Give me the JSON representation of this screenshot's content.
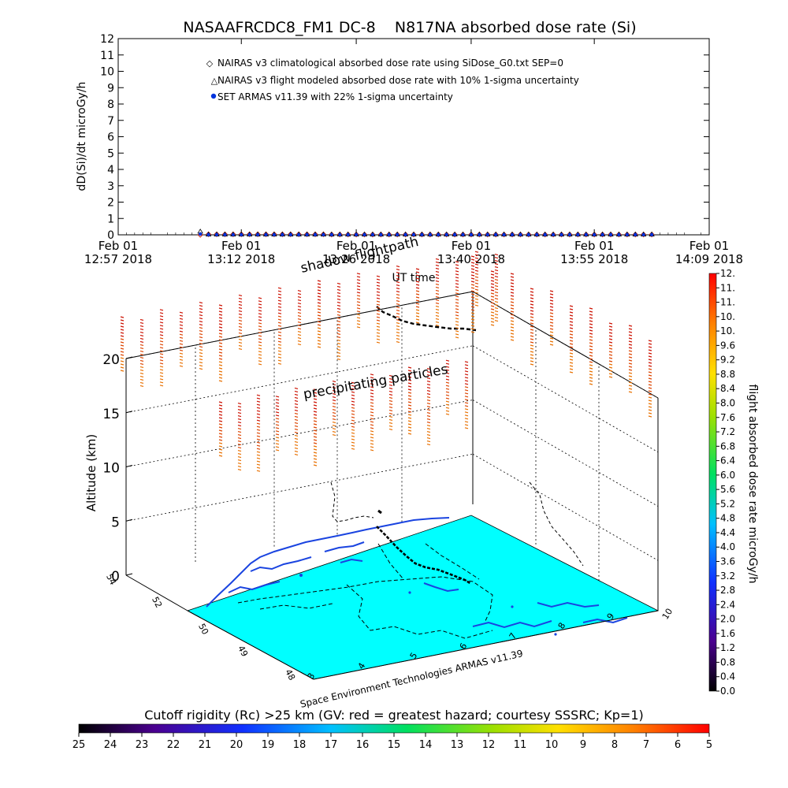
{
  "chart_data": [
    {
      "type": "scatter",
      "title": "NASAAFRCDC8_FM1 DC-8    N817NA absorbed dose rate (Si)",
      "xlabel": "UT time",
      "ylabel": "dD(Si)/dt microGy/h",
      "ylim": [
        0,
        12
      ],
      "y_ticks": [
        "0",
        "1",
        "2",
        "3",
        "4",
        "5",
        "6",
        "7",
        "8",
        "9",
        "10",
        "11",
        "12"
      ],
      "x_ticks": [
        {
          "line1": "Feb 01",
          "line2": "12:57 2018"
        },
        {
          "line1": "Feb 01",
          "line2": "13:12 2018"
        },
        {
          "line1": "Feb 01",
          "line2": "13:26 2018"
        },
        {
          "line1": "Feb 01",
          "line2": "13:40 2018"
        },
        {
          "line1": "Feb 01",
          "line2": "13:55 2018"
        },
        {
          "line1": "Feb 01",
          "line2": "14:09 2018"
        }
      ],
      "x_tick_minutes": [
        0,
        15,
        29,
        43,
        58,
        72
      ],
      "xlim_minutes": [
        0,
        72
      ],
      "legend_position": "top-left",
      "series": [
        {
          "name": "NAIRAS v3 climatological absorbed dose rate using SiDose_G0.txt SEP=0",
          "marker": "diamond",
          "color": "#cc2200",
          "x_minutes": [
            10,
            11,
            12,
            13,
            14,
            15,
            16,
            17,
            18,
            19,
            20,
            21,
            22,
            23,
            24,
            25,
            26,
            27,
            28,
            29,
            30,
            31,
            32,
            33,
            34,
            35,
            36,
            37,
            38,
            39,
            40,
            41,
            42,
            43,
            44,
            45,
            46,
            47,
            48,
            49,
            50,
            51,
            52,
            53,
            54,
            55,
            56,
            57,
            58,
            59,
            60,
            61,
            62,
            63,
            64,
            65
          ],
          "values": [
            0,
            0.03,
            0.03,
            0.03,
            0.03,
            0.03,
            0.03,
            0.03,
            0.03,
            0.03,
            0.03,
            0.03,
            0.03,
            0.03,
            0.03,
            0.03,
            0.02,
            0.02,
            0.02,
            0.02,
            0.02,
            0.02,
            0.02,
            0.02,
            0.02,
            0.02,
            0.02,
            0.02,
            0.02,
            0.02,
            0.02,
            0.02,
            0.02,
            0.02,
            0.02,
            0.02,
            0.02,
            0.02,
            0.02,
            0.02,
            0.02,
            0.02,
            0.02,
            0.02,
            0.02,
            0.02,
            0.02,
            0.02,
            0.02,
            0.02,
            0.02,
            0.02,
            0.02,
            0.02,
            0.02,
            0.02
          ]
        },
        {
          "name": "NAIRAS v3 flight modeled absorbed dose rate with 10% 1-sigma uncertainty",
          "marker": "triangle",
          "color": "#000000",
          "x_minutes": [
            10,
            11,
            12,
            13,
            14,
            15,
            16,
            17,
            18,
            19,
            20,
            21,
            22,
            23,
            24,
            25,
            26,
            27,
            28,
            29,
            30,
            31,
            32,
            33,
            34,
            35,
            36,
            37,
            38,
            39,
            40,
            41,
            42,
            43,
            44,
            45,
            46,
            47,
            48,
            49,
            50,
            51,
            52,
            53,
            54,
            55,
            56,
            57,
            58,
            59,
            60,
            61,
            62,
            63,
            64,
            65
          ],
          "values": [
            0.2,
            0.02,
            0.02,
            0.02,
            0.02,
            0.02,
            0.02,
            0.02,
            0.02,
            0.02,
            0.02,
            0.02,
            0.02,
            0.02,
            0.02,
            0.02,
            0.02,
            0.02,
            0.02,
            0.02,
            0.02,
            0.02,
            0.02,
            0.02,
            0.02,
            0.02,
            0.02,
            0.02,
            0.02,
            0.02,
            0.02,
            0.02,
            0.02,
            0.02,
            0.02,
            0.02,
            0.02,
            0.02,
            0.02,
            0.02,
            0.02,
            0.02,
            0.02,
            0.02,
            0.02,
            0.02,
            0.02,
            0.02,
            0.02,
            0.02,
            0.02,
            0.02,
            0.02,
            0.02,
            0.02,
            0.02
          ]
        },
        {
          "name": "SET ARMAS v11.39 with 22% 1-sigma uncertainty",
          "marker": "circle",
          "color": "#0033dd",
          "x_minutes": [
            10,
            11,
            12,
            13,
            14,
            15,
            16,
            17,
            18,
            19,
            20,
            21,
            22,
            23,
            24,
            25,
            26,
            27,
            28,
            29,
            30,
            31,
            32,
            33,
            34,
            35,
            36,
            37,
            38,
            39,
            40,
            41,
            42,
            43,
            44,
            45,
            46,
            47,
            48,
            49,
            50,
            51,
            52,
            53,
            54,
            55,
            56,
            57,
            58,
            59,
            60,
            61,
            62,
            63,
            64,
            65
          ],
          "values": [
            0.05,
            0.01,
            0.01,
            0.01,
            0.01,
            0.01,
            0.01,
            0.01,
            0.01,
            0.01,
            0.01,
            0.01,
            0.01,
            0.01,
            0.01,
            0.01,
            0.01,
            0.01,
            0.01,
            0.01,
            0.01,
            0.01,
            0.01,
            0.01,
            0.01,
            0.01,
            0.01,
            0.01,
            0.01,
            0.01,
            0.01,
            0.01,
            0.01,
            0.01,
            0.01,
            0.01,
            0.01,
            0.01,
            0.01,
            0.01,
            0.01,
            0.01,
            0.01,
            0.01,
            0.01,
            0.01,
            0.01,
            0.01,
            0.01,
            0.01,
            0.01,
            0.01,
            0.01,
            0.01,
            0.01,
            0.01
          ]
        }
      ]
    },
    {
      "type": "3d-scatter",
      "zlabel": "Altitude (km)",
      "zlim": [
        0,
        20
      ],
      "z_ticks": [
        "0",
        "5",
        "10",
        "15",
        "20"
      ],
      "lat_ticks": [
        "48",
        "49",
        "50",
        "52",
        "54"
      ],
      "lon_ticks": [
        "3",
        "4",
        "5",
        "6",
        "7",
        "8",
        "9",
        "10"
      ],
      "annotations": {
        "shadow": "shadow flightpath",
        "particles": "precipitating particles",
        "credit": "Space Environment Technologies ARMAS v11.39"
      },
      "map_color": "#00ffff",
      "particle_colors": [
        "#cc1100",
        "#dd4400",
        "#e87000"
      ],
      "flightpath_altitude_km": 11.3
    }
  ],
  "colorbar_dose": {
    "label": "flight absorbed dose rate microGy/h",
    "ticks": [
      "0.0",
      "0.4",
      "0.8",
      "1.2",
      "1.6",
      "2.0",
      "2.4",
      "2.8",
      "3.2",
      "3.6",
      "4.0",
      "4.4",
      "4.8",
      "5.2",
      "5.6",
      "6.0",
      "6.4",
      "6.8",
      "7.2",
      "7.6",
      "8.0",
      "8.4",
      "8.8",
      "9.2",
      "9.6",
      "10.",
      "10.",
      "11.",
      "11.",
      "12."
    ],
    "range": [
      0,
      12
    ]
  },
  "colorbar_rigidity": {
    "title": "Cutoff rigidity (Rc) >25 km (GV: red = greatest hazard; courtesy SSSRC; Kp=1)",
    "ticks": [
      "25",
      "24",
      "23",
      "22",
      "21",
      "20",
      "19",
      "18",
      "17",
      "16",
      "15",
      "14",
      "13",
      "12",
      "11",
      "10",
      "9",
      "8",
      "7",
      "6",
      "5"
    ],
    "range": [
      25,
      5
    ]
  }
}
